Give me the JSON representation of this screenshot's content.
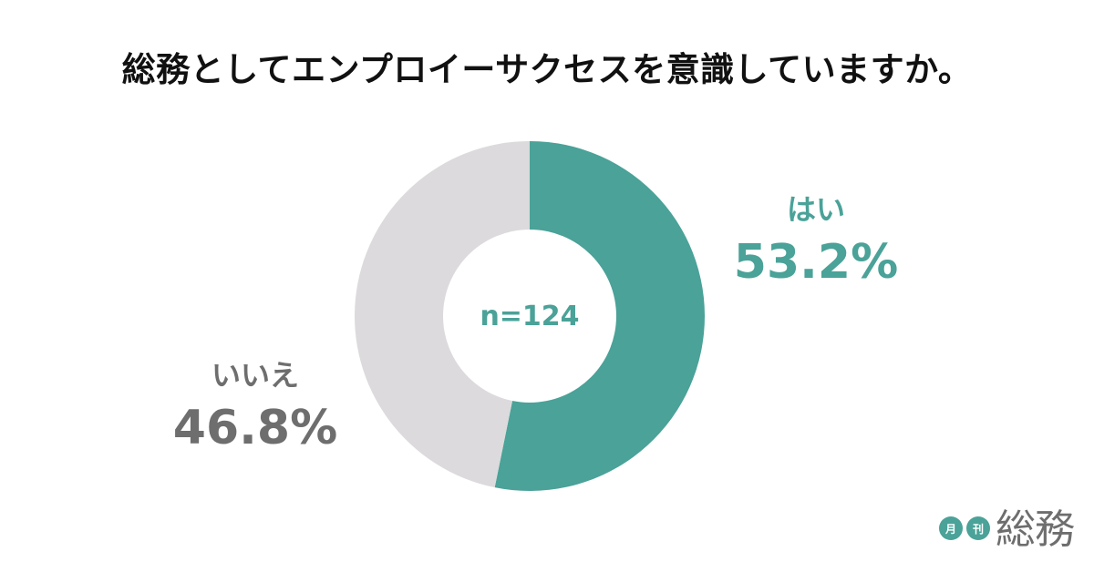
{
  "title": "総務としてエンプロイーサクセスを意識していますか。",
  "chart_data": {
    "type": "pie",
    "variant": "donut",
    "title": "総務としてエンプロイーサクセスを意識していますか。",
    "center_label": "n=124",
    "sample_size": 124,
    "categories": [
      "はい",
      "いいえ"
    ],
    "values": [
      53.2,
      46.8
    ],
    "unit": "%",
    "colors": [
      "#4aa298",
      "#dcdadc"
    ],
    "start_angle": "12 o'clock",
    "direction": "clockwise"
  },
  "labels": {
    "yes": {
      "name": "はい",
      "pct": "53.2%"
    },
    "no": {
      "name": "いいえ",
      "pct": "46.8%"
    }
  },
  "center": {
    "n": "n=124"
  },
  "logo": {
    "badge1": "月",
    "badge2": "刊",
    "brand": "総務"
  },
  "colors": {
    "accent": "#4aa298",
    "secondary": "#dcdadc",
    "label_gray": "#6e6e6e",
    "title": "#111111"
  }
}
